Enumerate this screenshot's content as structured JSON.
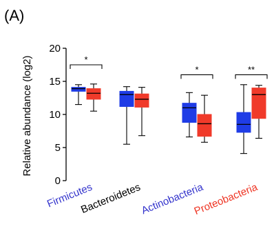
{
  "panel_label": "(A)",
  "chart_data": {
    "type": "box",
    "title": "",
    "ylabel": "Relative abundance (log2)",
    "ylim": [
      0,
      20
    ],
    "yticks": [
      0,
      5,
      10,
      15,
      20
    ],
    "categories": [
      {
        "label": "Firmicutes",
        "color": "#3333cc"
      },
      {
        "label": "Bacteroidetes",
        "color": "#000000"
      },
      {
        "label": "Actinobacteria",
        "color": "#3333cc"
      },
      {
        "label": "Proteobacteria",
        "color": "#ee3322"
      }
    ],
    "series": [
      {
        "color": "#1f3ce6",
        "boxes": [
          {
            "min": 11.5,
            "q1": 13.5,
            "median": 13.9,
            "q3": 14.1,
            "max": 14.5
          },
          {
            "min": 5.5,
            "q1": 11.2,
            "median": 13.0,
            "q3": 13.5,
            "max": 14.2
          },
          {
            "min": 6.6,
            "q1": 8.8,
            "median": 11.0,
            "q3": 11.7,
            "max": 13.3
          },
          {
            "min": 4.1,
            "q1": 7.3,
            "median": 8.5,
            "q3": 10.3,
            "max": 14.5
          }
        ]
      },
      {
        "color": "#f03a2a",
        "boxes": [
          {
            "min": 10.5,
            "q1": 12.3,
            "median": 13.2,
            "q3": 13.9,
            "max": 14.6
          },
          {
            "min": 6.8,
            "q1": 11.1,
            "median": 12.3,
            "q3": 13.1,
            "max": 14.1
          },
          {
            "min": 5.8,
            "q1": 6.7,
            "median": 8.6,
            "q3": 10.0,
            "max": 12.9
          },
          {
            "min": 6.4,
            "q1": 9.4,
            "median": 13.0,
            "q3": 14.0,
            "max": 14.4
          }
        ]
      }
    ],
    "significance": [
      {
        "category_index": 0,
        "label": "*",
        "y": 17.5
      },
      {
        "category_index": 2,
        "label": "*",
        "y": 16.0
      },
      {
        "category_index": 3,
        "label": "**",
        "y": 16.0
      }
    ]
  }
}
